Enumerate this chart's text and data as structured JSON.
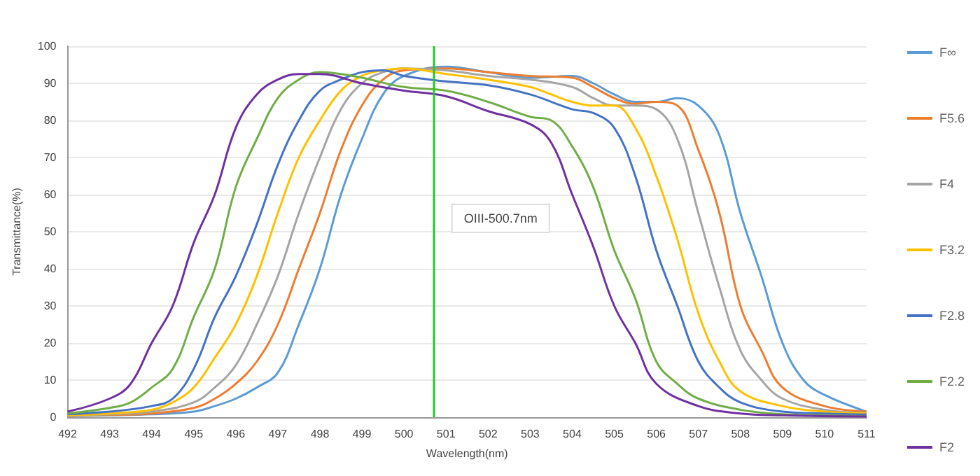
{
  "chart_data": {
    "type": "line",
    "xlabel": "Wavelength(nm)",
    "ylabel": "Transmittance(%)",
    "xlim": [
      492,
      511
    ],
    "xticks": [
      492,
      493,
      494,
      495,
      496,
      497,
      498,
      499,
      500,
      501,
      502,
      503,
      504,
      505,
      506,
      507,
      508,
      509,
      510,
      511
    ],
    "ylim": [
      0,
      100
    ],
    "yticks": [
      0,
      10,
      20,
      30,
      40,
      50,
      60,
      70,
      80,
      90,
      100
    ],
    "grid": "y",
    "legend": "right",
    "marker": "none",
    "line_style": "solid",
    "ref_lines": [
      {
        "axis": "x",
        "value": 500.7,
        "label": "OIII-500.7nm",
        "color": "#22cc22"
      }
    ],
    "series": [
      {
        "name": "F∞",
        "color": "#5b9bd5",
        "x": [
          492,
          493,
          494,
          495,
          495.5,
          496,
          496.5,
          497,
          497.5,
          498,
          498.5,
          499,
          499.5,
          500,
          501,
          502,
          503,
          504,
          504.5,
          505,
          505.5,
          506,
          506.5,
          507,
          507.5,
          508,
          508.5,
          509,
          509.5,
          510,
          511
        ],
        "values": [
          0.3,
          0.5,
          0.8,
          1.5,
          3,
          5,
          8,
          12,
          25,
          40,
          60,
          75,
          87,
          92,
          94.5,
          93,
          91.5,
          92,
          90,
          87,
          85,
          85,
          86,
          84,
          76,
          55,
          38,
          20,
          10,
          6,
          1.5
        ]
      },
      {
        "name": "F5.6",
        "color": "#ed7d31",
        "x": [
          492,
          493,
          494,
          495,
          495.5,
          496,
          496.5,
          497,
          497.5,
          498,
          498.5,
          499,
          499.5,
          500,
          501,
          502,
          503,
          504,
          504.5,
          505,
          505.5,
          506,
          506.5,
          507,
          507.5,
          508,
          508.5,
          509,
          510,
          511
        ],
        "values": [
          0.4,
          0.6,
          1,
          2.5,
          5,
          9,
          15,
          25,
          40,
          55,
          72,
          84,
          91,
          93.5,
          94,
          93,
          92,
          91.5,
          89,
          86,
          84.5,
          85,
          84,
          72,
          55,
          30,
          18,
          8,
          3,
          1.5
        ]
      },
      {
        "name": "F4",
        "color": "#a5a5a5",
        "x": [
          492,
          493,
          494,
          495,
          495.5,
          496,
          496.5,
          497,
          497.5,
          498,
          498.5,
          499,
          499.5,
          500,
          501,
          502,
          503,
          504,
          504.5,
          505,
          505.5,
          506,
          506.5,
          507,
          507.5,
          508,
          508.5,
          509,
          510,
          511
        ],
        "values": [
          0.5,
          0.8,
          1.5,
          4,
          8,
          14,
          25,
          38,
          55,
          70,
          83,
          90,
          93,
          94,
          93.5,
          92,
          91,
          89,
          86,
          84,
          84,
          83,
          75,
          55,
          35,
          18,
          10,
          5,
          2,
          1.2
        ]
      },
      {
        "name": "F3.2",
        "color": "#ffc000",
        "x": [
          492,
          493,
          494,
          494.5,
          495,
          495.5,
          496,
          496.5,
          497,
          497.5,
          498,
          498.5,
          499,
          499.5,
          500,
          501,
          502,
          503,
          503.5,
          504,
          504.5,
          505,
          505.5,
          506,
          506.5,
          507,
          507.5,
          508,
          509,
          510,
          511
        ],
        "values": [
          0.5,
          1,
          2,
          4,
          8,
          16,
          25,
          38,
          55,
          70,
          80,
          88,
          92,
          93.5,
          94,
          92.5,
          91,
          89,
          87,
          85,
          84,
          84,
          78,
          65,
          48,
          28,
          15,
          7,
          3,
          1.5,
          1
        ]
      },
      {
        "name": "F2.8",
        "color": "#4472c4",
        "x": [
          492,
          493,
          494,
          494.5,
          495,
          495.5,
          496,
          496.5,
          497,
          497.5,
          498,
          498.5,
          499,
          499.5,
          500,
          501,
          502,
          503,
          504,
          504.5,
          505,
          505.5,
          506,
          506.5,
          507,
          507.5,
          508,
          509,
          510,
          511
        ],
        "values": [
          0.8,
          1.5,
          3,
          5,
          13,
          27,
          38,
          52,
          68,
          80,
          88,
          91,
          93,
          93.5,
          92,
          90.5,
          89.5,
          87,
          83,
          82,
          78,
          65,
          45,
          30,
          15,
          8,
          4,
          1.5,
          1,
          0.7
        ]
      },
      {
        "name": "F2.2",
        "color": "#70ad47",
        "x": [
          492,
          493,
          493.5,
          494,
          494.5,
          495,
          495.5,
          496,
          496.5,
          497,
          497.5,
          498,
          498.5,
          499,
          500,
          501,
          502,
          503,
          503.5,
          504,
          504.5,
          505,
          505.5,
          506,
          506.5,
          507,
          508,
          509,
          510,
          511
        ],
        "values": [
          1,
          2.5,
          4,
          8,
          13,
          27,
          40,
          62,
          75,
          86,
          91,
          93,
          92.5,
          91.5,
          89,
          88,
          85,
          81,
          80,
          73,
          62,
          45,
          32,
          15,
          9,
          5,
          2,
          0.8,
          0.5,
          0.3
        ]
      },
      {
        "name": "F2",
        "color": "#7030a0",
        "x": [
          492,
          493,
          493.5,
          494,
          494.5,
          495,
          495.5,
          496,
          496.5,
          497,
          497.5,
          498,
          499,
          500,
          501,
          502,
          503,
          503.5,
          504,
          504.5,
          505,
          505.5,
          506,
          507,
          508,
          509,
          510,
          511
        ],
        "values": [
          1.5,
          5,
          9,
          20,
          30,
          47,
          60,
          78,
          87,
          91,
          92.5,
          92.5,
          90,
          88,
          86.5,
          82.5,
          79,
          74,
          60,
          46,
          30,
          20,
          9,
          3,
          1,
          0.5,
          0.3,
          0.2
        ]
      }
    ]
  }
}
